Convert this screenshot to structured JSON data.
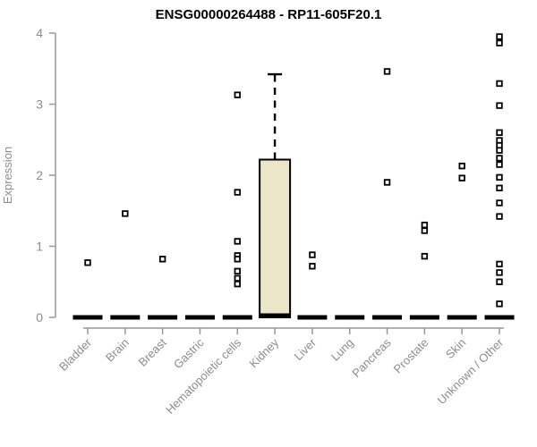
{
  "chart_data": {
    "type": "boxplot",
    "title": "ENSG00000264488 - RP11-605F20.1",
    "xlabel": "",
    "ylabel": "Expression",
    "ylim": [
      0,
      4
    ],
    "yticks": [
      0,
      1,
      2,
      3,
      4
    ],
    "grid": false,
    "legend": "none",
    "categories": [
      "Bladder",
      "Brain",
      "Breast",
      "Gastric",
      "Hematopoietic cells",
      "Kidney",
      "Liver",
      "Lung",
      "Pancreas",
      "Prostate",
      "Skin",
      "Unknown / Other"
    ],
    "boxes": [
      {
        "category": "Bladder",
        "q1": 0,
        "median": 0,
        "q3": 0,
        "whisker_low": 0,
        "whisker_high": 0,
        "outliers": [
          0.77
        ]
      },
      {
        "category": "Brain",
        "q1": 0,
        "median": 0,
        "q3": 0,
        "whisker_low": 0,
        "whisker_high": 0,
        "outliers": [
          1.46
        ]
      },
      {
        "category": "Breast",
        "q1": 0,
        "median": 0,
        "q3": 0,
        "whisker_low": 0,
        "whisker_high": 0,
        "outliers": [
          0.82
        ]
      },
      {
        "category": "Gastric",
        "q1": 0,
        "median": 0,
        "q3": 0,
        "whisker_low": 0,
        "whisker_high": 0,
        "outliers": []
      },
      {
        "category": "Hematopoietic cells",
        "q1": 0,
        "median": 0,
        "q3": 0,
        "whisker_low": 0,
        "whisker_high": 0,
        "outliers": [
          3.13,
          1.76,
          1.07,
          0.87,
          0.82,
          0.65,
          0.55,
          0.47
        ]
      },
      {
        "category": "Kidney",
        "q1": 0,
        "median": 0,
        "q3": 2.22,
        "whisker_low": 0,
        "whisker_high": 3.42,
        "outliers": []
      },
      {
        "category": "Liver",
        "q1": 0,
        "median": 0,
        "q3": 0,
        "whisker_low": 0,
        "whisker_high": 0,
        "outliers": [
          0.88,
          0.72
        ]
      },
      {
        "category": "Lung",
        "q1": 0,
        "median": 0,
        "q3": 0,
        "whisker_low": 0,
        "whisker_high": 0,
        "outliers": []
      },
      {
        "category": "Pancreas",
        "q1": 0,
        "median": 0,
        "q3": 0,
        "whisker_low": 0,
        "whisker_high": 0,
        "outliers": [
          3.46,
          1.9
        ]
      },
      {
        "category": "Prostate",
        "q1": 0,
        "median": 0,
        "q3": 0,
        "whisker_low": 0,
        "whisker_high": 0,
        "outliers": [
          1.3,
          1.22,
          0.86
        ]
      },
      {
        "category": "Skin",
        "q1": 0,
        "median": 0,
        "q3": 0,
        "whisker_low": 0,
        "whisker_high": 0,
        "outliers": [
          2.13,
          1.96
        ]
      },
      {
        "category": "Unknown / Other",
        "q1": 0,
        "median": 0,
        "q3": 0,
        "whisker_low": 0,
        "whisker_high": 0,
        "outliers": [
          3.95,
          3.86,
          3.29,
          2.98,
          2.6,
          2.49,
          2.42,
          2.35,
          2.24,
          2.15,
          1.97,
          1.82,
          1.61,
          1.42,
          0.75,
          0.63,
          0.5,
          0.19
        ]
      }
    ],
    "colors": {
      "box_fill": "#ece6c9",
      "box_stroke": "#000000",
      "median": "#000000",
      "outlier": "#000000",
      "axis": "#999999",
      "tick_label": "#8c8c8c",
      "title": "#000000",
      "background": "#ffffff"
    }
  }
}
